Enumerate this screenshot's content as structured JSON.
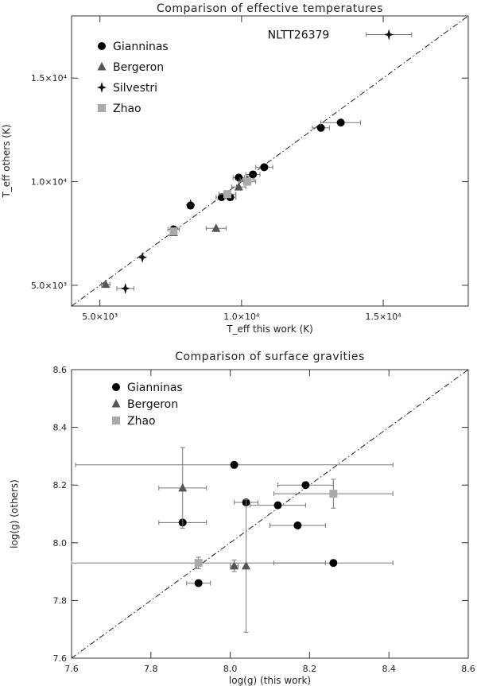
{
  "chart_data": [
    {
      "type": "scatter",
      "title": "Comparison of effective temperatures",
      "xlabel": "T_eff  this work (K)",
      "ylabel": "T_eff  others (K)",
      "xlim": [
        4000,
        18000
      ],
      "ylim": [
        4000,
        18000
      ],
      "x_ticks": [
        5000,
        10000,
        15000
      ],
      "y_ticks": [
        5000,
        10000,
        15000
      ],
      "x_tick_labels": [
        "5.0×10³",
        "1.0×10⁴",
        "1.5×10⁴"
      ],
      "y_tick_labels": [
        "5.0×10³",
        "1.0×10⁴",
        "1.5×10⁴"
      ],
      "reference_line": "y = x (dash-dot)",
      "legend_position": "top-left",
      "annotation": {
        "text": "NLTT26379",
        "x": 13100,
        "y": 17100
      },
      "series": [
        {
          "name": "Gianninas",
          "marker": "circle",
          "color": "#000000",
          "points": [
            {
              "x": 7600,
              "y": 7700,
              "xerr": 200
            },
            {
              "x": 8200,
              "y": 8850,
              "xerr": 0
            },
            {
              "x": 9300,
              "y": 9250,
              "xerr": 200
            },
            {
              "x": 9600,
              "y": 9250,
              "xerr": 200
            },
            {
              "x": 9900,
              "y": 10200,
              "xerr": 200
            },
            {
              "x": 10400,
              "y": 10350,
              "xerr": 250
            },
            {
              "x": 10800,
              "y": 10700,
              "xerr": 300
            },
            {
              "x": 12800,
              "y": 12600,
              "xerr": 300
            },
            {
              "x": 13500,
              "y": 12850,
              "xerr": 700
            }
          ]
        },
        {
          "name": "Bergeron",
          "marker": "triangle",
          "color": "#555555",
          "points": [
            {
              "x": 5200,
              "y": 5050,
              "xerr": 150
            },
            {
              "x": 7600,
              "y": 7550,
              "xerr": 0
            },
            {
              "x": 9100,
              "y": 7750,
              "xerr": 350
            },
            {
              "x": 9900,
              "y": 9750,
              "xerr": 250
            },
            {
              "x": 10200,
              "y": 10100,
              "xerr": 250
            }
          ]
        },
        {
          "name": "Silvestri",
          "marker": "star",
          "color": "#111111",
          "points": [
            {
              "x": 5900,
              "y": 4850,
              "xerr": 300
            },
            {
              "x": 6500,
              "y": 6350,
              "xerr": 0
            },
            {
              "x": 8200,
              "y": 8900,
              "xerr": 0
            },
            {
              "x": 15200,
              "y": 17100,
              "xerr": 800
            }
          ]
        },
        {
          "name": "Zhao",
          "marker": "square",
          "color": "#aaaaaa",
          "points": [
            {
              "x": 7600,
              "y": 7600,
              "xerr": 0
            },
            {
              "x": 9500,
              "y": 9400,
              "xerr": 300
            },
            {
              "x": 10200,
              "y": 10000,
              "xerr": 300
            }
          ]
        }
      ]
    },
    {
      "type": "scatter",
      "title": "Comparison of surface gravities",
      "xlabel": "log(g) (this work)",
      "ylabel": "log(g) (others)",
      "xlim": [
        7.6,
        8.6
      ],
      "ylim": [
        7.6,
        8.6
      ],
      "x_ticks": [
        7.6,
        7.8,
        8.0,
        8.2,
        8.4,
        8.6
      ],
      "y_ticks": [
        7.6,
        7.8,
        8.0,
        8.2,
        8.4,
        8.6
      ],
      "x_tick_labels": [
        "7.6",
        "7.8",
        "8.0",
        "8.2",
        "8.4",
        "8.6"
      ],
      "y_tick_labels": [
        "7.6",
        "7.8",
        "8.0",
        "8.2",
        "8.4",
        "8.6"
      ],
      "reference_line": "y = x (dash-dot)",
      "legend_position": "top-left",
      "series": [
        {
          "name": "Gianninas",
          "marker": "circle",
          "color": "#000000",
          "points": [
            {
              "x": 8.01,
              "y": 8.27,
              "xerr": 0.4,
              "yerr": 0
            },
            {
              "x": 7.88,
              "y": 8.07,
              "xerr": 0.06,
              "yerr": 0.01
            },
            {
              "x": 8.04,
              "y": 8.14,
              "xerr": 0.03,
              "yerr": 0
            },
            {
              "x": 8.12,
              "y": 8.13,
              "xerr": 0.07,
              "yerr": 0
            },
            {
              "x": 8.19,
              "y": 8.2,
              "xerr": 0.07,
              "yerr": 0
            },
            {
              "x": 8.17,
              "y": 8.06,
              "xerr": 0.07,
              "yerr": 0
            },
            {
              "x": 8.26,
              "y": 7.93,
              "xerr": 0.15,
              "yerr": 0
            },
            {
              "x": 7.92,
              "y": 7.86,
              "xerr": 0.03,
              "yerr": 0
            }
          ]
        },
        {
          "name": "Bergeron",
          "marker": "triangle",
          "color": "#555555",
          "points": [
            {
              "x": 7.88,
              "y": 8.19,
              "xerr": 0.06,
              "yerr": 0.14
            },
            {
              "x": 8.01,
              "y": 7.92,
              "xerr": 0.01,
              "yerr": 0.02
            },
            {
              "x": 8.04,
              "y": 7.92,
              "xerr": 0.0,
              "yerr": 0.23
            }
          ]
        },
        {
          "name": "Zhao",
          "marker": "square",
          "color": "#aaaaaa",
          "points": [
            {
              "x": 7.92,
              "y": 7.93,
              "xerr": 0.32,
              "yerr": 0.02
            },
            {
              "x": 8.26,
              "y": 8.17,
              "xerr": 0.15,
              "yerr": 0.05
            }
          ]
        }
      ]
    }
  ]
}
